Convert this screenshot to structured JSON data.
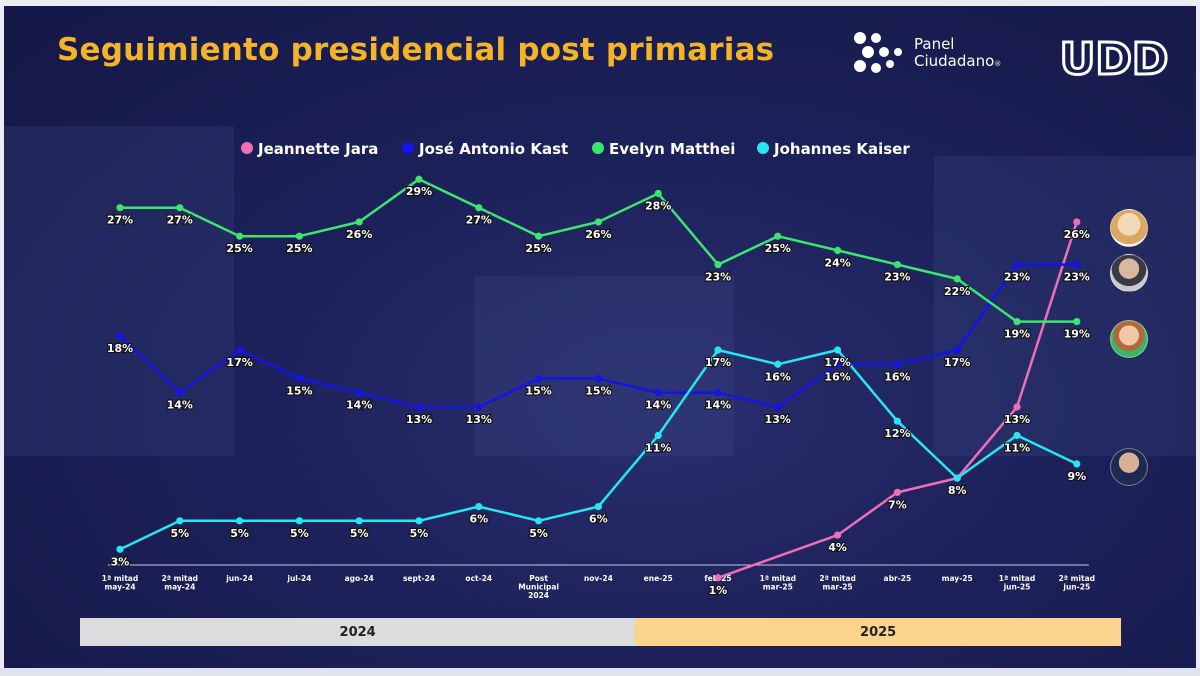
{
  "header": {
    "title": "Seguimiento presidencial post primarias",
    "brand_line1": "Panel",
    "brand_line2": "Ciudadano",
    "brand_mark": "®",
    "brand_logo_text": "UDD"
  },
  "colors": {
    "title": "#f5b428",
    "jara": "#ee6fb6",
    "kast": "#1414e6",
    "matthei": "#3ce66e",
    "kaiser": "#28e6f0",
    "year2024_bar": "#dcdcdc",
    "year2025_bar": "#fbd38c"
  },
  "chart_data": {
    "type": "line",
    "title": "Seguimiento presidencial post primarias",
    "ylim": [
      0,
      30
    ],
    "grid": false,
    "legend": "top-center",
    "x": [
      [
        "1ª mitad",
        "may-24"
      ],
      [
        "2ª mitad",
        "may-24"
      ],
      [
        "jun-24"
      ],
      [
        "jul-24"
      ],
      [
        "ago-24"
      ],
      [
        "sept-24"
      ],
      [
        "oct-24"
      ],
      [
        "Post",
        "Municipal",
        "2024"
      ],
      [
        "nov-24"
      ],
      [
        "ene-25"
      ],
      [
        "feb-25"
      ],
      [
        "1ª mitad",
        "mar-25"
      ],
      [
        "2ª mitad",
        "mar-25"
      ],
      [
        "abr-25"
      ],
      [
        "may-25"
      ],
      [
        "1ª mitad",
        "jun-25"
      ],
      [
        "2ª mitad",
        "jun-25"
      ]
    ],
    "year_groups": [
      {
        "label": "2024",
        "span": [
          0,
          9
        ]
      },
      {
        "label": "2025",
        "span": [
          9,
          17
        ]
      }
    ],
    "series": [
      {
        "name": "Jeannette Jara",
        "color": "#ee6fb6",
        "values": [
          null,
          null,
          null,
          null,
          null,
          null,
          null,
          null,
          null,
          null,
          1,
          null,
          4,
          7,
          8,
          13,
          26
        ]
      },
      {
        "name": "José Antonio Kast",
        "color": "#1414e6",
        "values": [
          18,
          14,
          17,
          15,
          14,
          13,
          13,
          15,
          15,
          14,
          14,
          13,
          16,
          16,
          17,
          23,
          23
        ]
      },
      {
        "name": "Evelyn Matthei",
        "color": "#3ce66e",
        "values": [
          27,
          27,
          25,
          25,
          26,
          29,
          27,
          25,
          26,
          28,
          23,
          25,
          24,
          23,
          22,
          19,
          19
        ]
      },
      {
        "name": "Johannes Kaiser",
        "color": "#28e6f0",
        "values": [
          3,
          5,
          5,
          5,
          5,
          5,
          6,
          5,
          6,
          11,
          17,
          16,
          17,
          12,
          8,
          11,
          9
        ]
      }
    ]
  }
}
